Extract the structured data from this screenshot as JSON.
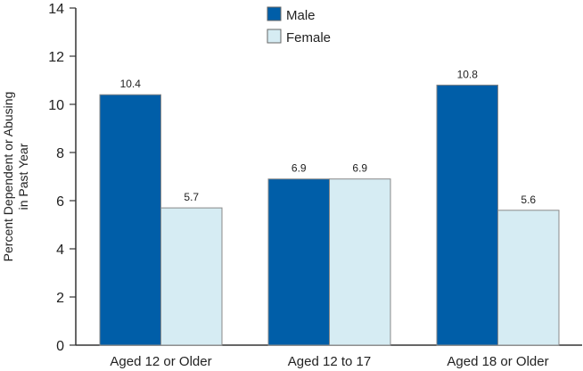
{
  "chart_data": {
    "type": "bar",
    "title": "",
    "xlabel": "",
    "ylabel": "Percent Dependent or Abusing in Past Year",
    "ylabel_lines": [
      "Percent Dependent or Abusing",
      "in Past Year"
    ],
    "categories": [
      "Aged 12 or Older",
      "Aged 12 to 17",
      "Aged 18 or Older"
    ],
    "series": [
      {
        "name": "Male",
        "values": [
          10.4,
          6.9,
          10.8
        ],
        "labels": [
          "10.4",
          "6.9",
          "10.8"
        ],
        "color": "#005ea8"
      },
      {
        "name": "Female",
        "values": [
          5.7,
          6.9,
          5.6
        ],
        "labels": [
          "5.7",
          "6.9",
          "5.6"
        ],
        "color": "#d6ecf3"
      }
    ],
    "ylim": [
      0,
      14
    ],
    "yticks": [
      0,
      2,
      4,
      6,
      8,
      10,
      12,
      14
    ],
    "grid": false,
    "legend_position": "top-center"
  }
}
